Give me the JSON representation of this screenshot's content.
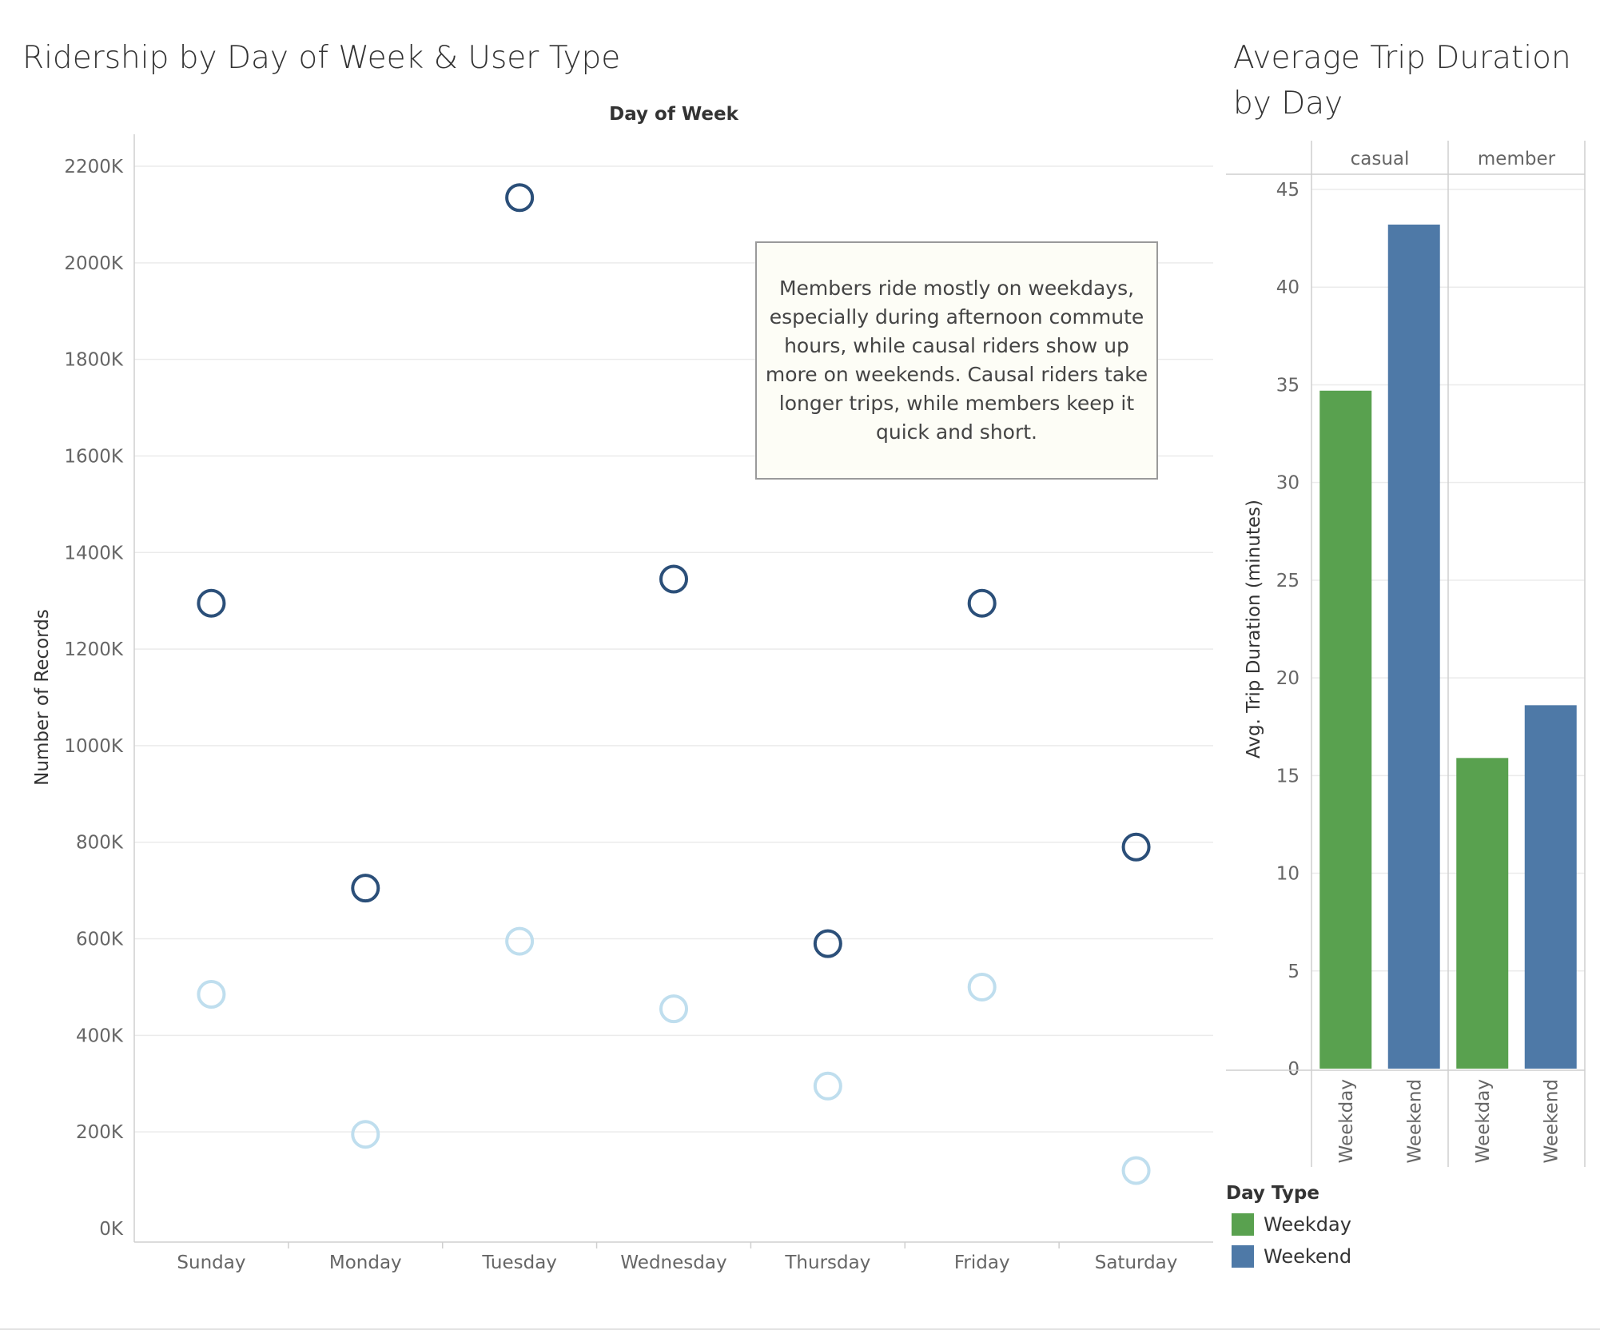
{
  "chart_data": [
    {
      "type": "scatter",
      "title": "Ridership by Day of Week & User Type",
      "column_header": "Day of Week",
      "xlabel": "",
      "ylabel": "Number of Records",
      "categories": [
        "Sunday",
        "Monday",
        "Tuesday",
        "Wednesday",
        "Thursday",
        "Friday",
        "Saturday"
      ],
      "y_ticks": [
        "0K",
        "200K",
        "400K",
        "600K",
        "800K",
        "1000K",
        "1200K",
        "1400K",
        "1600K",
        "1800K",
        "2000K",
        "2200K"
      ],
      "ylim": [
        0,
        2200000
      ],
      "grid": true,
      "series": [
        {
          "color": "#2b4f79",
          "values": [
            1295000,
            705000,
            2135000,
            1345000,
            590000,
            1295000,
            790000
          ]
        },
        {
          "color": "#bfdeee",
          "values": [
            485000,
            195000,
            595000,
            455000,
            295000,
            500000,
            120000
          ]
        }
      ],
      "annotation": "Members ride mostly on weekdays, especially during afternoon commute hours, while causal riders show up more on weekends. Causal riders take longer trips, while members keep it quick and short."
    },
    {
      "type": "bar",
      "title": "Average Trip Duration by Day",
      "xlabel": "",
      "ylabel": "Avg. Trip Duration (minutes)",
      "panels": [
        "casual",
        "member"
      ],
      "categories": [
        "Weekday",
        "Weekend"
      ],
      "y_ticks": [
        "0",
        "5",
        "10",
        "15",
        "20",
        "25",
        "30",
        "35",
        "40",
        "45"
      ],
      "ylim": [
        0,
        45
      ],
      "grid": true,
      "series": [
        {
          "name": "Weekday",
          "color": "#59a14f",
          "values": [
            34.7,
            15.9
          ]
        },
        {
          "name": "Weekend",
          "color": "#4e79a7",
          "values": [
            43.2,
            18.6
          ]
        }
      ],
      "legend": {
        "title": "Day Type",
        "placement": "bottom-left"
      }
    }
  ]
}
